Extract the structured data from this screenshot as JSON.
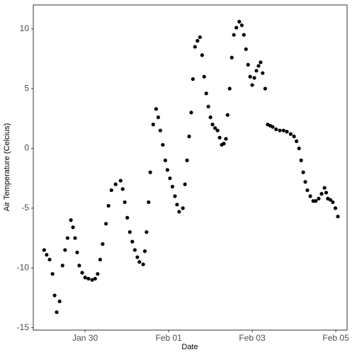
{
  "chart_data": {
    "type": "scatter",
    "xlabel": "Date",
    "ylabel": "Air Temperature (Celcius)",
    "color": "#000000",
    "grid": false,
    "xlim": [
      28.76,
      36.27
    ],
    "ylim": [
      -15.2,
      12
    ],
    "xticks": [
      {
        "value": 30,
        "label": "Jan 30"
      },
      {
        "value": 32,
        "label": "Feb 01"
      },
      {
        "value": 34,
        "label": "Feb 03"
      },
      {
        "value": 36,
        "label": "Feb 05"
      }
    ],
    "yticks": [
      -15,
      -10,
      -5,
      0,
      5,
      10
    ],
    "x": [
      29.02,
      29.08,
      29.15,
      29.22,
      29.27,
      29.32,
      29.39,
      29.46,
      29.52,
      29.58,
      29.66,
      29.71,
      29.76,
      29.81,
      29.86,
      29.93,
      30.0,
      30.08,
      30.17,
      30.24,
      30.3,
      30.36,
      30.42,
      30.5,
      30.56,
      30.63,
      30.73,
      30.85,
      30.9,
      30.95,
      31.01,
      31.07,
      31.13,
      31.19,
      31.25,
      31.3,
      31.39,
      31.43,
      31.47,
      31.52,
      31.56,
      31.63,
      31.7,
      31.75,
      31.8,
      31.86,
      31.92,
      31.97,
      32.03,
      32.09,
      32.15,
      32.2,
      32.25,
      32.34,
      32.39,
      32.44,
      32.49,
      32.54,
      32.58,
      32.63,
      32.69,
      32.75,
      32.8,
      32.85,
      32.9,
      32.95,
      33.0,
      33.05,
      33.11,
      33.17,
      33.22,
      33.27,
      33.32,
      33.37,
      33.41,
      33.46,
      33.51,
      33.56,
      33.62,
      33.69,
      33.75,
      33.8,
      33.85,
      33.9,
      33.95,
      34.0,
      34.05,
      34.1,
      34.15,
      34.2,
      34.25,
      34.31,
      34.37,
      34.43,
      34.49,
      34.57,
      34.66,
      34.75,
      34.83,
      34.92,
      35.0,
      35.06,
      35.12,
      35.17,
      35.22,
      35.27,
      35.32,
      35.39,
      35.46,
      35.52,
      35.59,
      35.66,
      35.73,
      35.77,
      35.81,
      35.87,
      35.93,
      35.99,
      36.05
    ],
    "values": [
      -8.5,
      -8.9,
      -9.3,
      -10.5,
      -12.3,
      -13.7,
      -12.8,
      -9.8,
      -8.5,
      -7.5,
      -6.0,
      -6.6,
      -7.5,
      -8.7,
      -9.8,
      -10.4,
      -10.8,
      -10.9,
      -11.0,
      -10.9,
      -10.5,
      -9.3,
      -8.0,
      -6.3,
      -4.8,
      -3.5,
      -3.0,
      -2.7,
      -3.4,
      -4.5,
      -5.8,
      -7.0,
      -7.8,
      -8.5,
      -9.1,
      -9.5,
      -9.7,
      -8.6,
      -7.0,
      -4.5,
      -2.0,
      2.0,
      3.3,
      2.6,
      1.5,
      0.3,
      -1.0,
      -1.8,
      -2.5,
      -3.2,
      -4.0,
      -4.7,
      -5.3,
      -5.0,
      -3.0,
      -1.0,
      1.0,
      3.0,
      5.8,
      8.5,
      9.0,
      9.3,
      7.8,
      6.0,
      4.6,
      3.5,
      2.6,
      2.0,
      1.7,
      1.5,
      0.9,
      0.3,
      0.4,
      0.8,
      2.8,
      5.0,
      7.6,
      9.5,
      10.1,
      10.6,
      10.3,
      9.5,
      8.3,
      7.0,
      6.0,
      5.3,
      5.9,
      6.5,
      6.9,
      7.2,
      6.3,
      5.0,
      2.0,
      1.9,
      1.8,
      1.6,
      1.5,
      1.5,
      1.4,
      1.2,
      1.0,
      0.6,
      0.0,
      -1.0,
      -2.0,
      -2.8,
      -3.5,
      -4.0,
      -4.4,
      -4.4,
      -4.2,
      -3.8,
      -3.3,
      -3.7,
      -4.2,
      -4.3,
      -4.5,
      -5.0,
      -5.7
    ]
  }
}
